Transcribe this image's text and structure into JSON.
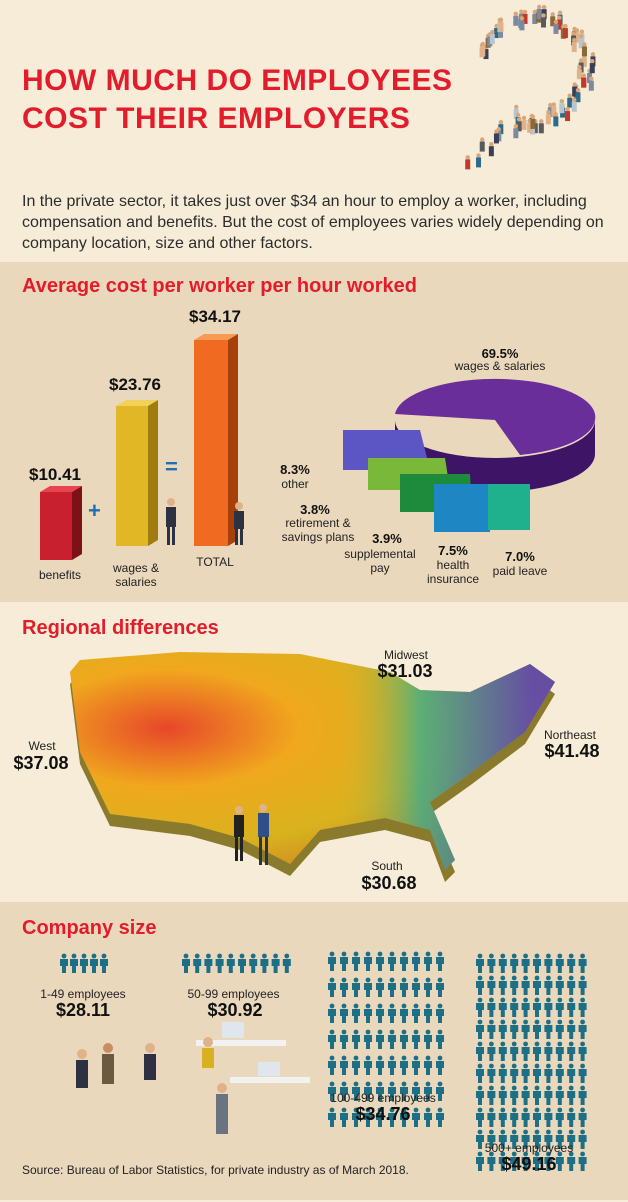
{
  "title": {
    "line1": "HOW MUCH DO EMPLOYEES",
    "line2": "COST THEIR EMPLOYERS"
  },
  "intro": "In the private sector, it takes just over $34 an hour to employ a worker, including compensation and benefits. But the cost of employees varies widely depending on company location, size and other factors.",
  "sections": {
    "cost_per_worker": "Average cost per worker per hour worked",
    "regional": "Regional differences",
    "company_size": "Company size"
  },
  "colors": {
    "accent": "#e31c2b",
    "bg_light": "#f6ecd7",
    "bg_dark": "#ead8bd"
  },
  "bars": [
    {
      "label": "benefits",
      "value": "$10.41",
      "color": "#c8202e"
    },
    {
      "label": "wages & salaries",
      "value": "$23.76",
      "color": "#e2b726"
    },
    {
      "label": "TOTAL",
      "value": "$34.17",
      "color": "#f06a22"
    }
  ],
  "operators": {
    "plus": "+",
    "equals": "="
  },
  "pie": [
    {
      "pct": "69.5%",
      "label": "wages & salaries",
      "color": "#6a2e9a"
    },
    {
      "pct": "8.3%",
      "label": "other",
      "color": "#5b56c4"
    },
    {
      "pct": "3.8%",
      "label": "retirement & savings plans",
      "color": "#7ab83a"
    },
    {
      "pct": "3.9%",
      "label": "supplemental pay",
      "color": "#1e8a3c"
    },
    {
      "pct": "7.5%",
      "label": "health insurance",
      "color": "#1e86c2"
    },
    {
      "pct": "7.0%",
      "label": "paid leave",
      "color": "#1fb08e"
    }
  ],
  "regions": [
    {
      "name": "West",
      "value": "$37.08"
    },
    {
      "name": "Midwest",
      "value": "$31.03"
    },
    {
      "name": "Northeast",
      "value": "$41.48"
    },
    {
      "name": "South",
      "value": "$30.68"
    }
  ],
  "company_sizes": [
    {
      "label": "1-49 employees",
      "value": "$28.11"
    },
    {
      "label": "50-99 employees",
      "value": "$30.92"
    },
    {
      "label": "100-499 employees",
      "value": "$34.76"
    },
    {
      "label": "500+ employees",
      "value": "$49.16"
    }
  ],
  "source": "Source: Bureau of Labor Statistics, for private industry as of March 2018."
}
